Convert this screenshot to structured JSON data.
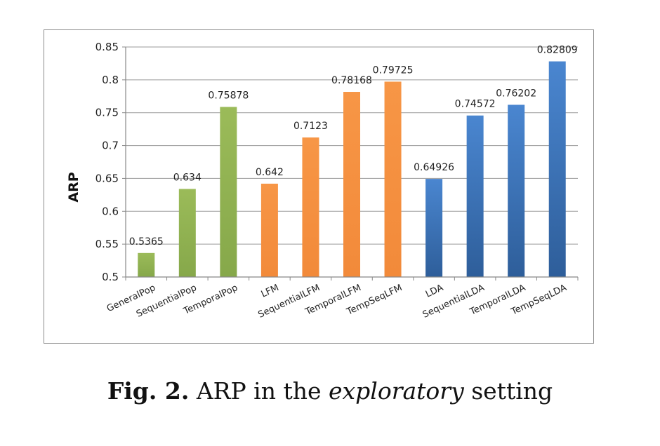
{
  "chart_data": {
    "type": "bar",
    "title": "",
    "xlabel": "",
    "ylabel": "ARP",
    "ylim": [
      0.5,
      0.85
    ],
    "yticks": [
      "0.5",
      "0.55",
      "0.6",
      "0.65",
      "0.7",
      "0.75",
      "0.8",
      "0.85"
    ],
    "grid": true,
    "legend": "none",
    "categories": [
      "GeneralPop",
      "SequentialPop",
      "TemporalPop",
      "LFM",
      "SequentialLFM",
      "TemporalLFM",
      "TempSeqLFM",
      "LDA",
      "SequentialLDA",
      "TemporalLDA",
      "TempSeqLDA"
    ],
    "values": [
      0.5365,
      0.634,
      0.75878,
      0.642,
      0.7123,
      0.78168,
      0.79725,
      0.64926,
      0.74572,
      0.76202,
      0.82809
    ],
    "value_labels": [
      "0.5365",
      "0.634",
      "0.75878",
      "0.642",
      "0.7123",
      "0.78168",
      "0.79725",
      "0.64926",
      "0.74572",
      "0.76202",
      "0.82809"
    ],
    "groups": [
      {
        "name": "Pop",
        "color": "#9BBB59",
        "members": [
          "GeneralPop",
          "SequentialPop",
          "TemporalPop"
        ]
      },
      {
        "name": "LFM",
        "color": "#F79646",
        "members": [
          "LFM",
          "SequentialLFM",
          "TemporalLFM",
          "TempSeqLFM"
        ]
      },
      {
        "name": "LDA",
        "color": "#4F81BD",
        "members": [
          "LDA",
          "SequentialLDA",
          "TemporalLDA",
          "TempSeqLDA"
        ]
      }
    ]
  },
  "caption": {
    "label": "Fig. 2.",
    "text_before": "ARP in the",
    "emphasis": "exploratory",
    "text_after": "setting"
  }
}
